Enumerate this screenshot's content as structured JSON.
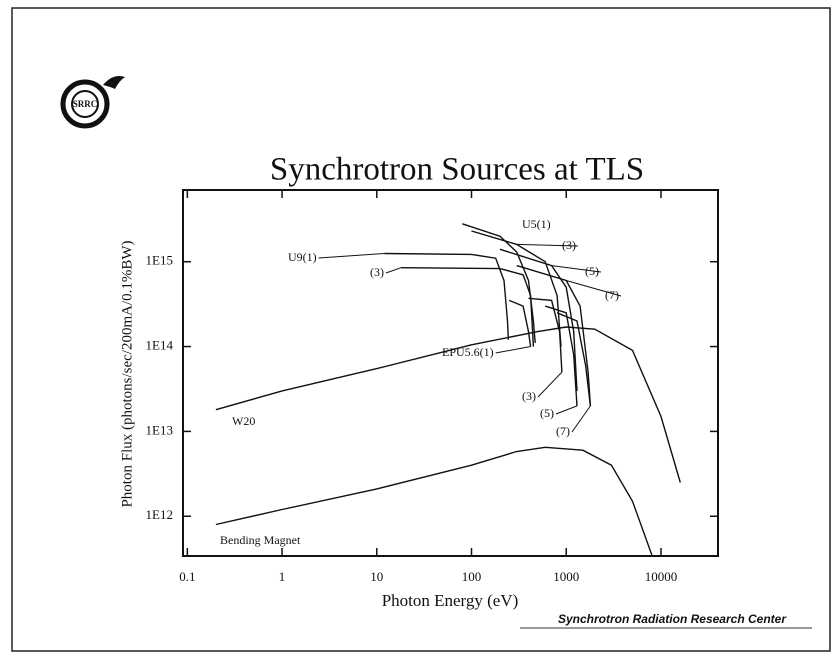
{
  "logo": "SRRC",
  "footer": "Synchrotron Radiation Research Center",
  "chart_data": {
    "type": "line",
    "title": "Synchrotron Sources at TLS",
    "x_label": "Photon Energy (eV)",
    "y_label": "Photon Flux (photons/sec/200mA/0.1%BW)",
    "x_log": true,
    "y_log": true,
    "grid": false,
    "xlim": [
      0.09,
      40000
    ],
    "ylim": [
      340000000000,
      7000000000000000
    ],
    "xticks": [
      0.1,
      1,
      10,
      100,
      1000,
      10000
    ],
    "yticks": [
      {
        "value": 1000000000000,
        "label": "1E12"
      },
      {
        "value": 10000000000000,
        "label": "1E13"
      },
      {
        "value": 100000000000000,
        "label": "1E14"
      },
      {
        "value": 1000000000000000,
        "label": "1E15"
      }
    ],
    "series": [
      {
        "name": "Bending Magnet",
        "color": "#111111",
        "x": [
          0.2,
          1,
          10,
          100,
          300,
          600,
          1500,
          3000,
          5000,
          8000
        ],
        "values": [
          800000000000,
          1200000000000,
          2100000000000,
          4000000000000,
          5800000000000,
          6500000000000,
          6000000000000,
          4000000000000,
          1500000000000,
          350000000000
        ]
      },
      {
        "name": "W20",
        "color": "#111111",
        "x": [
          0.2,
          1,
          10,
          100,
          500,
          1000,
          2000,
          5000,
          10000,
          16000
        ],
        "values": [
          18000000000000,
          30000000000000,
          55000000000000,
          105000000000000,
          150000000000000,
          170000000000000,
          160000000000000,
          90000000000000,
          15000000000000,
          2500000000000
        ]
      },
      {
        "name": "U9(1)",
        "color": "#111111",
        "x": [
          12,
          100,
          180,
          220,
          240,
          245
        ],
        "values": [
          1250000000000000,
          1220000000000000,
          1100000000000000,
          600000000000000,
          200000000000000,
          120000000000000
        ]
      },
      {
        "name": "(3)",
        "color": "#111111",
        "x": [
          18,
          200,
          350,
          420,
          450
        ],
        "values": [
          850000000000000,
          830000000000000,
          700000000000000,
          400000000000000,
          100000000000000
        ]
      },
      {
        "name": "U5(1)",
        "color": "#111111",
        "x": [
          80,
          200,
          300,
          400,
          450,
          470
        ],
        "values": [
          2800000000000000,
          2000000000000000,
          1300000000000000,
          600000000000000,
          200000000000000,
          110000000000000
        ]
      },
      {
        "name": "(3)",
        "color": "#111111",
        "x": [
          100,
          300,
          600,
          800,
          880
        ],
        "values": [
          2300000000000000,
          1600000000000000,
          1000000000000000,
          400000000000000,
          100000000000000
        ]
      },
      {
        "name": "(5)",
        "color": "#111111",
        "x": [
          200,
          700,
          1000,
          1200,
          1300
        ],
        "values": [
          1400000000000000,
          900000000000000,
          500000000000000,
          150000000000000,
          30000000000000
        ]
      },
      {
        "name": "(7)",
        "color": "#111111",
        "x": [
          300,
          1000,
          1400,
          1700,
          1800
        ],
        "values": [
          900000000000000,
          600000000000000,
          300000000000000,
          50000000000000,
          20000000000000
        ]
      },
      {
        "name": "EPU5.6(1)",
        "color": "#111111",
        "x": [
          250,
          350,
          400,
          420
        ],
        "values": [
          350000000000000,
          300000000000000,
          150000000000000,
          100000000000000
        ]
      },
      {
        "name": "(3)",
        "color": "#111111",
        "x": [
          400,
          700,
          850,
          900
        ],
        "values": [
          370000000000000,
          350000000000000,
          150000000000000,
          50000000000000
        ]
      },
      {
        "name": "(5)",
        "color": "#111111",
        "x": [
          600,
          1000,
          1200,
          1300
        ],
        "values": [
          300000000000000,
          250000000000000,
          80000000000000,
          20000000000000
        ]
      },
      {
        "name": "(7)",
        "color": "#111111",
        "x": [
          800,
          1300,
          1600,
          1800
        ],
        "values": [
          250000000000000,
          200000000000000,
          60000000000000,
          20000000000000
        ]
      }
    ]
  }
}
